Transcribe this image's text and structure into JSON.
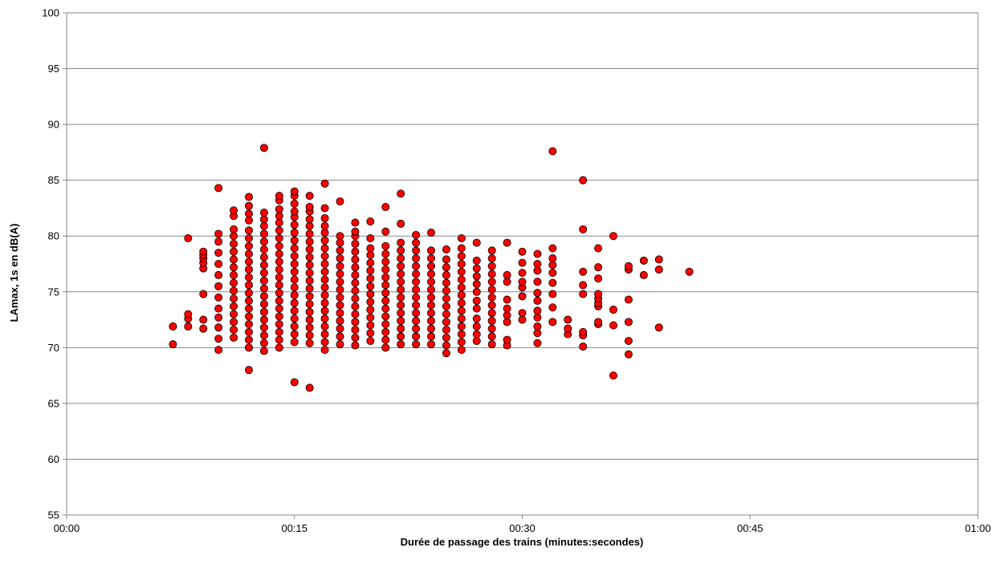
{
  "chart_data": {
    "type": "scatter",
    "xlabel": "Durée de passage des trains (minutes:secondes)",
    "ylabel": "LAmax, 1s en dB(A)",
    "xlim": [
      0,
      60
    ],
    "ylim": [
      55,
      100
    ],
    "x_ticks": [
      {
        "value": 0,
        "label": "00:00"
      },
      {
        "value": 15,
        "label": "00:15"
      },
      {
        "value": 30,
        "label": "00:30"
      },
      {
        "value": 45,
        "label": "00:45"
      },
      {
        "value": 60,
        "label": "01:00"
      }
    ],
    "y_ticks": [
      55,
      60,
      65,
      70,
      75,
      80,
      85,
      90,
      95,
      100
    ],
    "grid": {
      "horizontal": true,
      "vertical": false
    },
    "marker_color": "#ff0000",
    "marker_edge_color": "#000000",
    "series": [
      {
        "columns": [
          {
            "x": 7,
            "y": [
              70.3,
              71.9
            ]
          },
          {
            "x": 8,
            "y": [
              71.9,
              72.6,
              73.0,
              79.8
            ]
          },
          {
            "x": 9,
            "y": [
              71.7,
              72.5,
              74.8,
              77.1,
              77.6,
              78.0,
              78.3,
              78.6
            ]
          },
          {
            "x": 10,
            "y": [
              69.8,
              70.8,
              71.8,
              72.7,
              73.5,
              74.5,
              75.5,
              76.5,
              77.5,
              78.5,
              79.5,
              80.2,
              84.3
            ]
          },
          {
            "x": 11,
            "y": [
              70.9,
              71.6,
              72.3,
              73.0,
              73.7,
              74.4,
              75.1,
              75.8,
              76.5,
              77.2,
              77.9,
              78.6,
              79.3,
              80.0,
              80.6,
              81.8,
              82.3
            ]
          },
          {
            "x": 12,
            "y": [
              68.0,
              70.0,
              70.7,
              71.4,
              72.1,
              72.8,
              73.5,
              74.2,
              74.9,
              75.6,
              76.3,
              77.0,
              77.7,
              78.4,
              79.1,
              79.8,
              80.5,
              81.4,
              82.0,
              82.7,
              83.5
            ]
          },
          {
            "x": 13,
            "y": [
              69.7,
              70.4,
              71.1,
              71.8,
              72.5,
              73.2,
              73.9,
              74.6,
              75.3,
              76.0,
              76.7,
              77.4,
              78.1,
              78.8,
              79.5,
              80.2,
              80.9,
              81.5,
              82.1,
              87.9
            ]
          },
          {
            "x": 14,
            "y": [
              70.0,
              70.7,
              71.4,
              72.1,
              72.8,
              73.5,
              74.2,
              74.9,
              75.6,
              76.3,
              77.0,
              77.7,
              78.4,
              79.1,
              79.8,
              80.5,
              81.2,
              81.8,
              82.4,
              83.2,
              83.6
            ]
          },
          {
            "x": 15,
            "y": [
              66.9,
              70.5,
              71.2,
              71.9,
              72.6,
              73.3,
              74.0,
              74.7,
              75.4,
              76.1,
              76.8,
              77.5,
              78.2,
              78.9,
              79.6,
              80.3,
              81.0,
              81.7,
              82.2,
              82.9,
              83.6,
              84.0
            ]
          },
          {
            "x": 16,
            "y": [
              66.4,
              70.4,
              71.1,
              71.8,
              72.5,
              73.2,
              73.9,
              74.6,
              75.3,
              76.0,
              76.7,
              77.4,
              78.1,
              78.8,
              79.5,
              80.2,
              80.9,
              81.5,
              82.2,
              82.6,
              83.6
            ]
          },
          {
            "x": 17,
            "y": [
              69.8,
              70.5,
              71.2,
              71.9,
              72.6,
              73.3,
              74.0,
              74.7,
              75.4,
              76.1,
              76.8,
              77.5,
              78.2,
              78.9,
              79.6,
              80.3,
              80.9,
              81.6,
              82.5,
              84.7
            ]
          },
          {
            "x": 18,
            "y": [
              70.3,
              71.0,
              71.7,
              72.4,
              73.1,
              73.8,
              74.5,
              75.2,
              75.9,
              76.6,
              77.3,
              78.0,
              78.7,
              79.4,
              80.0,
              83.1
            ]
          },
          {
            "x": 19,
            "y": [
              70.2,
              70.9,
              71.6,
              72.3,
              73.0,
              73.7,
              74.4,
              75.1,
              75.8,
              76.5,
              77.2,
              77.9,
              78.6,
              79.3,
              80.0,
              80.4,
              81.2
            ]
          },
          {
            "x": 20,
            "y": [
              70.6,
              71.3,
              72.0,
              72.7,
              73.4,
              74.1,
              74.8,
              75.5,
              76.2,
              76.9,
              77.6,
              78.3,
              78.9,
              79.8,
              81.3
            ]
          },
          {
            "x": 21,
            "y": [
              70.0,
              70.7,
              71.4,
              72.1,
              72.8,
              73.5,
              74.2,
              74.9,
              75.6,
              76.3,
              77.0,
              77.7,
              78.4,
              79.1,
              80.4,
              82.6
            ]
          },
          {
            "x": 22,
            "y": [
              70.3,
              71.0,
              71.7,
              72.4,
              73.1,
              73.8,
              74.5,
              75.2,
              75.9,
              76.6,
              77.3,
              78.0,
              78.7,
              79.4,
              81.1,
              83.8
            ]
          },
          {
            "x": 23,
            "y": [
              70.3,
              71.0,
              71.7,
              72.4,
              73.1,
              73.8,
              74.5,
              75.2,
              75.9,
              76.6,
              77.3,
              78.0,
              78.7,
              79.4,
              80.1
            ]
          },
          {
            "x": 24,
            "y": [
              70.3,
              71.0,
              71.7,
              72.4,
              73.1,
              73.8,
              74.5,
              75.2,
              75.9,
              76.6,
              77.3,
              78.0,
              78.7,
              80.3
            ]
          },
          {
            "x": 25,
            "y": [
              69.5,
              70.2,
              70.9,
              71.6,
              72.3,
              73.0,
              73.7,
              74.4,
              75.1,
              75.8,
              76.5,
              77.2,
              77.9,
              78.8
            ]
          },
          {
            "x": 26,
            "y": [
              69.8,
              70.5,
              71.2,
              71.9,
              72.6,
              73.3,
              74.0,
              74.7,
              75.4,
              76.1,
              76.8,
              77.5,
              78.2,
              78.9,
              79.8
            ]
          },
          {
            "x": 27,
            "y": [
              70.6,
              71.2,
              71.9,
              72.6,
              73.5,
              74.2,
              75.0,
              75.7,
              76.4,
              77.1,
              77.8,
              79.4
            ]
          },
          {
            "x": 28,
            "y": [
              70.3,
              71.0,
              71.7,
              72.4,
              73.1,
              73.8,
              74.5,
              75.2,
              75.9,
              76.6,
              77.3,
              78.0,
              78.7
            ]
          },
          {
            "x": 29,
            "y": [
              70.2,
              70.7,
              72.3,
              72.9,
              73.5,
              74.3,
              75.9,
              76.5,
              79.4
            ]
          },
          {
            "x": 30,
            "y": [
              72.5,
              73.1,
              74.6,
              75.4,
              75.9,
              76.7,
              77.6,
              78.6
            ]
          },
          {
            "x": 31,
            "y": [
              70.4,
              71.3,
              71.9,
              72.7,
              73.3,
              74.2,
              74.9,
              75.9,
              76.9,
              77.5,
              78.4
            ]
          },
          {
            "x": 32,
            "y": [
              72.3,
              73.6,
              74.8,
              75.8,
              76.7,
              77.4,
              78.0,
              78.9,
              87.6
            ]
          },
          {
            "x": 33,
            "y": [
              71.2,
              71.7,
              72.5
            ]
          },
          {
            "x": 34,
            "y": [
              70.1,
              71.1,
              71.4,
              74.8,
              75.6,
              76.8,
              80.6,
              85.0
            ]
          },
          {
            "x": 35,
            "y": [
              72.1,
              72.3,
              73.7,
              74.0,
              74.4,
              74.8,
              76.2,
              77.2,
              78.9
            ]
          },
          {
            "x": 36,
            "y": [
              67.5,
              72.0,
              73.4,
              80.0
            ]
          },
          {
            "x": 37,
            "y": [
              69.4,
              70.6,
              72.3,
              74.3,
              77.0,
              77.3
            ]
          },
          {
            "x": 38,
            "y": [
              76.5,
              77.8
            ]
          },
          {
            "x": 39,
            "y": [
              71.8,
              77.0,
              77.9
            ]
          },
          {
            "x": 41,
            "y": [
              76.8
            ]
          }
        ]
      }
    ]
  }
}
